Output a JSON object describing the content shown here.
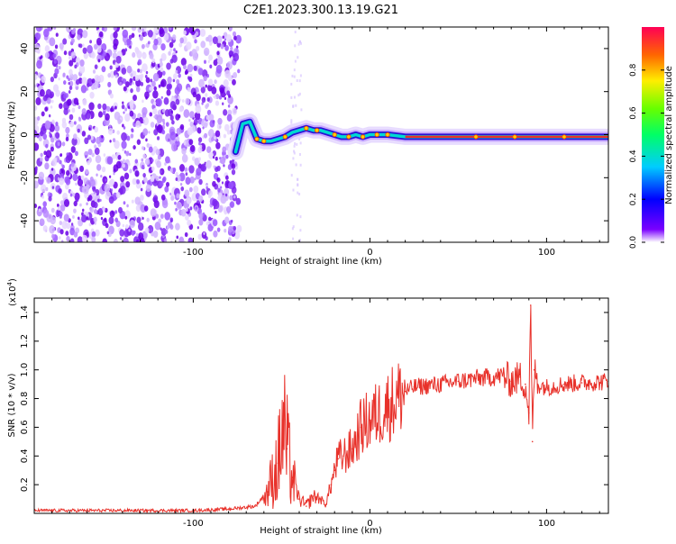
{
  "title": "C2E1.2023.300.13.19.G21",
  "chart_data": [
    {
      "type": "heatmap",
      "xlabel": "Height of straight line (km)",
      "ylabel": "Frequency (Hz)",
      "xlim": [
        -190,
        135
      ],
      "ylim": [
        -50,
        50
      ],
      "xticks": [
        "-100",
        "0",
        "100"
      ],
      "xtick_values": [
        -100,
        0,
        100
      ],
      "yticks": [
        "40",
        "20",
        "0",
        "-20",
        "-40"
      ],
      "ytick_values": [
        40,
        20,
        0,
        -20,
        -40
      ],
      "colorbar": {
        "label": "Normalized spectral amplitude",
        "range": [
          0,
          1
        ],
        "ticks": [
          "0.0",
          "0.2",
          "0.4",
          "0.6",
          "0.8"
        ],
        "tick_values": [
          0.0,
          0.2,
          0.4,
          0.6,
          0.8
        ]
      },
      "noise_region_x": [
        -190,
        -78
      ],
      "signal_track": {
        "x": [
          -76,
          -72,
          -68,
          -64,
          -60,
          -56,
          -52,
          -48,
          -44,
          -40,
          -36,
          -32,
          -28,
          -24,
          -20,
          -16,
          -12,
          -8,
          -4,
          0,
          10,
          20,
          40,
          60,
          80,
          100,
          120,
          135
        ],
        "y": [
          -8,
          5,
          6,
          -2,
          -3,
          -3,
          -2,
          -1,
          1,
          2,
          3,
          2,
          2,
          1,
          0,
          -1,
          -1,
          0,
          -1,
          0,
          0,
          -1,
          -1,
          -1,
          -1,
          -1,
          -1,
          -1
        ]
      }
    },
    {
      "type": "line",
      "xlabel": "Height of straight line (km)",
      "ylabel": "SNR (10 * v/v)",
      "multiplier_label": "(x10",
      "multiplier_exp": "4",
      "multiplier_close": ")",
      "xlim": [
        -190,
        135
      ],
      "ylim": [
        0,
        1.5
      ],
      "xticks": [
        "-100",
        "0",
        "100"
      ],
      "xtick_values": [
        -100,
        0,
        100
      ],
      "yticks": [
        "0.2",
        "0.4",
        "0.6",
        "0.8",
        "1.0",
        "1.2",
        "1.4"
      ],
      "ytick_values": [
        0.2,
        0.4,
        0.6,
        0.8,
        1.0,
        1.2,
        1.4
      ],
      "series": [
        {
          "color": "#e8312a",
          "x": [
            -190,
            -150,
            -100,
            -80,
            -65,
            -58,
            -52,
            -49,
            -47,
            -44,
            -40,
            -36,
            -32,
            -28,
            -25,
            -22,
            -20,
            -18,
            -15,
            -10,
            -5,
            0,
            10,
            20,
            25,
            40,
            50,
            60,
            70,
            75,
            80,
            85,
            88,
            90,
            91,
            92,
            93,
            95,
            100,
            110,
            120,
            135
          ],
          "values": [
            0.02,
            0.02,
            0.02,
            0.03,
            0.05,
            0.15,
            0.35,
            0.6,
            0.45,
            0.25,
            0.1,
            0.05,
            0.12,
            0.1,
            0.06,
            0.2,
            0.3,
            0.38,
            0.4,
            0.45,
            0.6,
            0.65,
            0.75,
            0.85,
            0.88,
            0.9,
            0.92,
            0.94,
            0.95,
            0.96,
            0.92,
            0.95,
            0.9,
            0.7,
            1.45,
            0.5,
            1.0,
            0.9,
            0.88,
            0.9,
            0.91,
            0.92
          ]
        }
      ]
    }
  ]
}
